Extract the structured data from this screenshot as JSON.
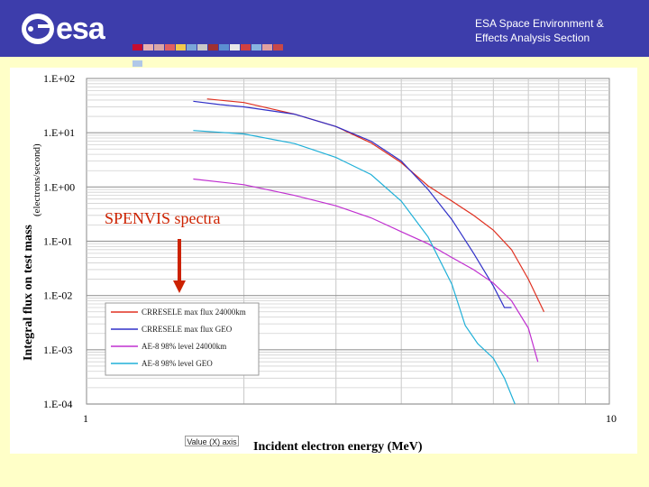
{
  "header": {
    "logo_text": "esa",
    "title_line1": "ESA Space Environment &",
    "title_line2": "Effects Analysis Section",
    "flag_colors": [
      "#c60c30",
      "#e8b0b0",
      "#d9a6a6",
      "#e06060",
      "#f2c94c",
      "#7aa6d8",
      "#c8c8c8",
      "#a03030",
      "#5b8fd1",
      "#e8e8e8",
      "#d04040",
      "#88b4e0",
      "#e0a0a0",
      "#c84848",
      "#b0c8e8"
    ]
  },
  "value_axis_label": "Value (X) axis",
  "chart_data": {
    "type": "line",
    "title": "",
    "xlabel": "Incident electron energy (MeV)",
    "ylabel": "Integral flux on test mass",
    "ylabel_unit": "(electrons/second)",
    "xscale": "log",
    "yscale": "log",
    "xlim": [
      1,
      10
    ],
    "ylim": [
      0.0001,
      100
    ],
    "x_tick_labels": [
      "1",
      "10"
    ],
    "y_tick_labels": [
      "1.E+02",
      "1.E+01",
      "1.E+00",
      "1.E-01",
      "1.E-02",
      "1.E-03",
      "1.E-04"
    ],
    "grid": true,
    "legend": "bottom-left",
    "annotation": "SPENVIS spectra",
    "series": [
      {
        "name": "CRRESELE max flux 24000km",
        "color": "#e03020",
        "x": [
          1.7,
          2.0,
          2.5,
          3.0,
          3.5,
          4.0,
          4.5,
          5.0,
          5.5,
          6.0,
          6.5,
          7.0,
          7.5
        ],
        "y": [
          42,
          36,
          22,
          13,
          6.5,
          2.8,
          1.05,
          0.55,
          0.3,
          0.16,
          0.07,
          0.02,
          0.005
        ]
      },
      {
        "name": "CRRESELE max flux GEO",
        "color": "#3030c8",
        "x": [
          1.6,
          1.8,
          2.0,
          2.5,
          3.0,
          3.5,
          4.0,
          4.5,
          5.0,
          5.5,
          6.0,
          6.3,
          6.5
        ],
        "y": [
          38,
          33,
          30,
          22,
          13,
          7,
          3.0,
          0.9,
          0.25,
          0.06,
          0.015,
          0.006,
          0.006
        ]
      },
      {
        "name": "AE-8 98% level 24000km",
        "color": "#c030d0",
        "x": [
          1.6,
          2.0,
          2.5,
          3.0,
          3.5,
          4.0,
          4.5,
          5.0,
          5.5,
          6.0,
          6.5,
          7.0,
          7.3
        ],
        "y": [
          1.4,
          1.1,
          0.7,
          0.45,
          0.27,
          0.15,
          0.09,
          0.05,
          0.03,
          0.017,
          0.008,
          0.0025,
          0.0006
        ]
      },
      {
        "name": "AE-8 98% level GEO",
        "color": "#20b0d8",
        "x": [
          1.6,
          2.0,
          2.5,
          3.0,
          3.5,
          4.0,
          4.5,
          5.0,
          5.3,
          5.6,
          6.0,
          6.3,
          6.6
        ],
        "y": [
          11,
          9.5,
          6.3,
          3.5,
          1.7,
          0.55,
          0.12,
          0.016,
          0.0028,
          0.0013,
          0.0007,
          0.0003,
          0.0001
        ]
      }
    ]
  }
}
